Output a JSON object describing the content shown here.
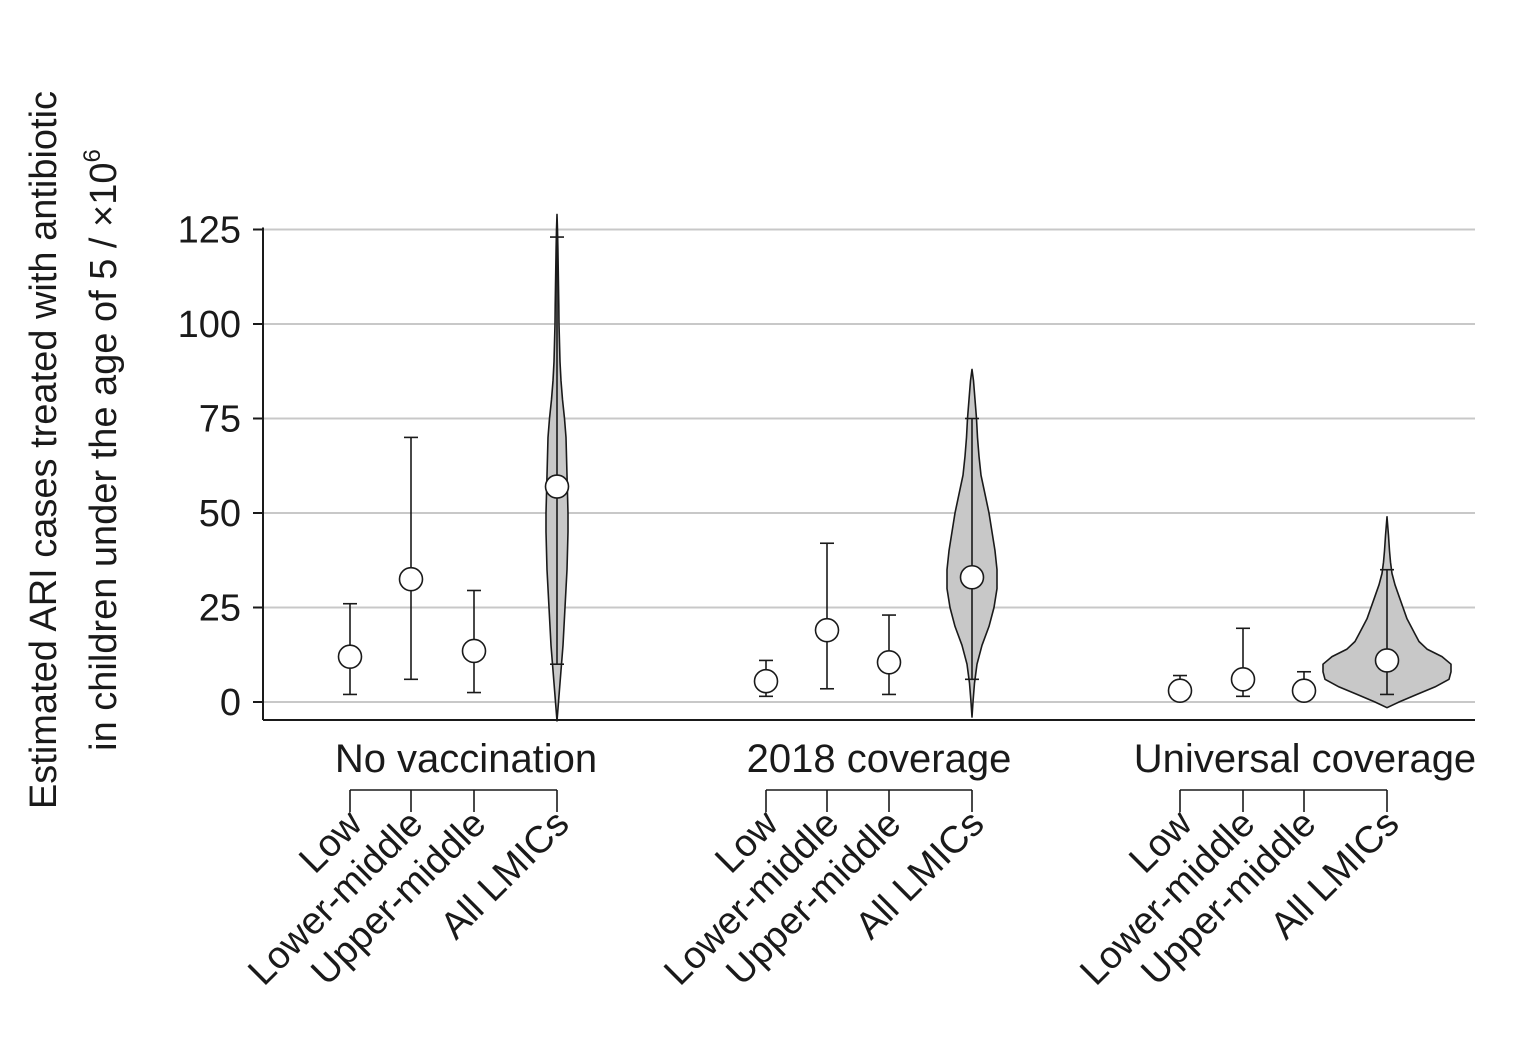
{
  "chart_data": {
    "type": "violin",
    "ylabel_line1": "Estimated ARI cases treated with antibiotic",
    "ylabel_line2": "in children under the age of 5 / ×10",
    "ylabel_superscript": "6",
    "yticks": [
      0,
      25,
      50,
      75,
      100,
      125
    ],
    "ylim": [
      -5,
      128
    ],
    "grid": true,
    "categories": [
      "Low",
      "Lower-middle",
      "Upper-middle",
      "All LMICs"
    ],
    "groups": [
      {
        "name": "No vaccination",
        "points": [
          {
            "category": "Low",
            "median": 12,
            "lower": 2,
            "upper": 26
          },
          {
            "category": "Lower-middle",
            "median": 32.5,
            "lower": 6,
            "upper": 70
          },
          {
            "category": "Upper-middle",
            "median": 13.5,
            "lower": 2.5,
            "upper": 29.5
          }
        ],
        "violin": {
          "category": "All LMICs",
          "median": 57,
          "lower": 10,
          "upper": 123,
          "min": -5,
          "max": 129,
          "profile": [
            [
              -5,
              0
            ],
            [
              0,
              1.5
            ],
            [
              5,
              3
            ],
            [
              10,
              4.5
            ],
            [
              15,
              6
            ],
            [
              20,
              7
            ],
            [
              25,
              8
            ],
            [
              30,
              9
            ],
            [
              35,
              10
            ],
            [
              40,
              10.5
            ],
            [
              45,
              11
            ],
            [
              50,
              11
            ],
            [
              55,
              10.5
            ],
            [
              60,
              10
            ],
            [
              65,
              9.5
            ],
            [
              70,
              9
            ],
            [
              75,
              7.5
            ],
            [
              80,
              5.5
            ],
            [
              85,
              4
            ],
            [
              90,
              3
            ],
            [
              95,
              2.5
            ],
            [
              100,
              2
            ],
            [
              105,
              1.8
            ],
            [
              110,
              1.5
            ],
            [
              115,
              1.2
            ],
            [
              120,
              0.9
            ],
            [
              125,
              0.5
            ],
            [
              129,
              0
            ]
          ]
        }
      },
      {
        "name": "2018 coverage",
        "points": [
          {
            "category": "Low",
            "median": 5.5,
            "lower": 1.5,
            "upper": 11
          },
          {
            "category": "Lower-middle",
            "median": 19,
            "lower": 3.5,
            "upper": 42
          },
          {
            "category": "Upper-middle",
            "median": 10.5,
            "lower": 2,
            "upper": 23
          }
        ],
        "violin": {
          "category": "All LMICs",
          "median": 33,
          "lower": 6,
          "upper": 75,
          "min": -4,
          "max": 88,
          "profile": [
            [
              -4,
              0
            ],
            [
              0,
              1
            ],
            [
              5,
              2.5
            ],
            [
              10,
              5
            ],
            [
              15,
              10
            ],
            [
              20,
              17
            ],
            [
              25,
              22
            ],
            [
              30,
              25
            ],
            [
              35,
              25
            ],
            [
              40,
              23
            ],
            [
              45,
              20
            ],
            [
              50,
              17
            ],
            [
              55,
              13
            ],
            [
              60,
              9
            ],
            [
              65,
              7
            ],
            [
              70,
              5.5
            ],
            [
              75,
              4.5
            ],
            [
              80,
              3
            ],
            [
              85,
              1.5
            ],
            [
              88,
              0
            ]
          ]
        }
      },
      {
        "name": "Universal coverage",
        "points": [
          {
            "category": "Low",
            "median": 3,
            "lower": 1,
            "upper": 7
          },
          {
            "category": "Lower-middle",
            "median": 6,
            "lower": 1.5,
            "upper": 19.5
          },
          {
            "category": "Upper-middle",
            "median": 3,
            "lower": 1,
            "upper": 8
          }
        ],
        "violin": {
          "category": "All LMICs",
          "median": 11,
          "lower": 2,
          "upper": 35,
          "min": -1.5,
          "max": 49,
          "profile": [
            [
              -1.5,
              0
            ],
            [
              0,
              12
            ],
            [
              2,
              30
            ],
            [
              4,
              48
            ],
            [
              6,
              62
            ],
            [
              8,
              64
            ],
            [
              10,
              64
            ],
            [
              12,
              55
            ],
            [
              14,
              40
            ],
            [
              16,
              32
            ],
            [
              18,
              28
            ],
            [
              20,
              24
            ],
            [
              22,
              20
            ],
            [
              25,
              16
            ],
            [
              28,
              12
            ],
            [
              31,
              8
            ],
            [
              34,
              5
            ],
            [
              37,
              3.5
            ],
            [
              40,
              2.5
            ],
            [
              44,
              1.5
            ],
            [
              49,
              0
            ]
          ]
        }
      }
    ]
  }
}
